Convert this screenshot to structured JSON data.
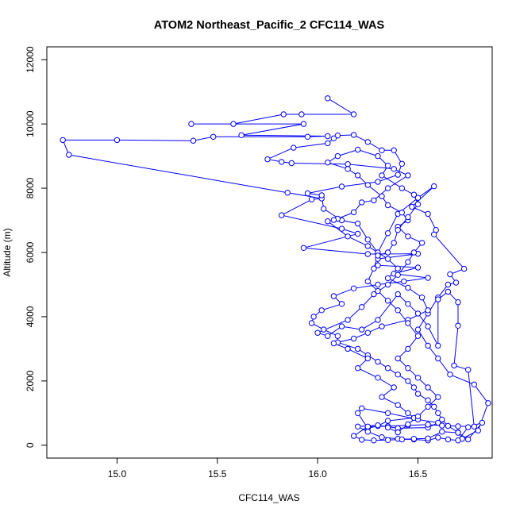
{
  "chart_data": {
    "type": "scatter",
    "title": "ATOM2 Northeast_Pacific_2 CFC114_WAS",
    "xlabel": "CFC114_WAS",
    "ylabel": "Altitude (m)",
    "xlim": [
      14.65,
      16.87
    ],
    "ylim": [
      -400,
      12400
    ],
    "xticks": [
      15.0,
      15.5,
      16.0,
      16.5
    ],
    "xtick_labels": [
      "15.0",
      "15.5",
      "16.0",
      "16.5"
    ],
    "yticks": [
      0,
      2000,
      4000,
      6000,
      8000,
      10000,
      12000
    ],
    "ytick_labels": [
      "0",
      "2000",
      "4000",
      "6000",
      "8000",
      "10000",
      "12000"
    ],
    "grid": false,
    "color": "#0000ff",
    "series": [
      {
        "points": [
          [
            16.05,
            10800
          ],
          [
            16.18,
            10300
          ],
          [
            15.92,
            10300
          ],
          [
            15.83,
            10300
          ],
          [
            15.58,
            10000
          ],
          [
            15.37,
            10000
          ],
          [
            15.93,
            10000
          ],
          [
            15.62,
            9650
          ],
          [
            16.05,
            9620
          ],
          [
            15.95,
            9600
          ],
          [
            15.48,
            9600
          ],
          [
            15.38,
            9480
          ],
          [
            15.0,
            9500
          ],
          [
            14.73,
            9500
          ],
          [
            14.76,
            9040
          ],
          [
            15.85,
            7860
          ],
          [
            16.02,
            7680
          ],
          [
            15.97,
            7650
          ],
          [
            15.82,
            7160
          ],
          [
            16.12,
            6740
          ],
          [
            16.2,
            6580
          ],
          [
            15.93,
            6140
          ],
          [
            16.25,
            5950
          ],
          [
            16.5,
            5960
          ],
          [
            16.3,
            5800
          ],
          [
            16.3,
            5600
          ],
          [
            16.5,
            5530
          ],
          [
            16.38,
            5340
          ],
          [
            16.55,
            5210
          ],
          [
            16.43,
            5100
          ],
          [
            16.3,
            5000
          ],
          [
            16.18,
            4880
          ],
          [
            16.08,
            4640
          ],
          [
            16.12,
            4400
          ],
          [
            16.02,
            4200
          ],
          [
            15.98,
            4000
          ],
          [
            15.97,
            3800
          ],
          [
            16.03,
            3600
          ],
          [
            16.1,
            3400
          ],
          [
            16.1,
            3200
          ],
          [
            16.2,
            3000
          ],
          [
            16.25,
            2800
          ],
          [
            16.3,
            2600
          ],
          [
            16.35,
            2400
          ],
          [
            16.4,
            2200
          ],
          [
            16.45,
            2000
          ],
          [
            16.48,
            1800
          ],
          [
            16.5,
            1600
          ],
          [
            16.55,
            1400
          ],
          [
            16.58,
            1200
          ],
          [
            16.6,
            1000
          ],
          [
            16.62,
            800
          ],
          [
            16.65,
            600
          ],
          [
            16.7,
            400
          ],
          [
            16.72,
            200
          ],
          [
            16.8,
            460
          ],
          [
            16.85,
            1310
          ],
          [
            16.78,
            1890
          ],
          [
            16.66,
            2200
          ],
          [
            16.6,
            2700
          ],
          [
            16.55,
            3100
          ],
          [
            16.5,
            3600
          ],
          [
            16.55,
            4100
          ],
          [
            16.6,
            4600
          ],
          [
            16.65,
            5000
          ],
          [
            16.69,
            5060
          ],
          [
            16.66,
            5320
          ],
          [
            16.73,
            5490
          ],
          [
            16.58,
            6560
          ],
          [
            16.59,
            6700
          ],
          [
            16.55,
            7200
          ],
          [
            16.47,
            7420
          ],
          [
            16.58,
            8060
          ],
          [
            16.5,
            7700
          ],
          [
            16.4,
            7200
          ],
          [
            16.35,
            6600
          ],
          [
            16.3,
            6000
          ],
          [
            16.25,
            6400
          ],
          [
            16.2,
            6900
          ],
          [
            16.12,
            7000
          ],
          [
            16.03,
            7360
          ],
          [
            16.02,
            7780
          ],
          [
            15.95,
            7840
          ],
          [
            16.12,
            8050
          ],
          [
            16.3,
            8200
          ],
          [
            16.4,
            8420
          ],
          [
            16.42,
            8760
          ],
          [
            16.38,
            9180
          ],
          [
            16.32,
            9180
          ],
          [
            16.25,
            9440
          ],
          [
            16.18,
            9660
          ],
          [
            16.1,
            9640
          ],
          [
            16.08,
            9550
          ],
          [
            16.05,
            9400
          ],
          [
            15.88,
            9260
          ],
          [
            15.75,
            8900
          ],
          [
            15.82,
            8820
          ],
          [
            15.87,
            8780
          ],
          [
            16.15,
            8750
          ],
          [
            16.38,
            8600
          ],
          [
            16.45,
            8400
          ],
          [
            16.35,
            8000
          ],
          [
            16.28,
            7620
          ],
          [
            16.22,
            7560
          ],
          [
            16.18,
            7250
          ],
          [
            16.1,
            7050
          ],
          [
            16.08,
            7010
          ],
          [
            16.05,
            6970
          ],
          [
            16.15,
            6500
          ],
          [
            16.25,
            6200
          ],
          [
            16.35,
            5800
          ],
          [
            16.4,
            5500
          ],
          [
            16.35,
            5200
          ],
          [
            16.45,
            4900
          ],
          [
            16.52,
            4600
          ],
          [
            16.55,
            4200
          ],
          [
            16.45,
            3900
          ],
          [
            16.32,
            3700
          ],
          [
            16.25,
            3500
          ],
          [
            16.18,
            3320
          ],
          [
            16.08,
            3170
          ],
          [
            16.15,
            3000
          ],
          [
            16.25,
            2700
          ],
          [
            16.2,
            2400
          ],
          [
            16.3,
            2100
          ],
          [
            16.38,
            1800
          ],
          [
            16.32,
            1500
          ],
          [
            16.4,
            1250
          ],
          [
            16.45,
            1000
          ],
          [
            16.48,
            850
          ],
          [
            16.35,
            760
          ],
          [
            16.3,
            600
          ],
          [
            16.25,
            530
          ],
          [
            16.2,
            1000
          ],
          [
            16.22,
            1150
          ],
          [
            16.35,
            1000
          ],
          [
            16.5,
            800
          ],
          [
            16.6,
            700
          ],
          [
            16.55,
            550
          ],
          [
            16.4,
            530
          ],
          [
            16.3,
            620
          ],
          [
            16.2,
            580
          ],
          [
            16.25,
            420
          ],
          [
            16.32,
            250
          ],
          [
            16.4,
            200
          ],
          [
            16.48,
            180
          ],
          [
            16.55,
            150
          ],
          [
            16.6,
            240
          ],
          [
            16.65,
            180
          ],
          [
            16.7,
            150
          ],
          [
            16.75,
            560
          ],
          [
            16.82,
            700
          ],
          [
            16.75,
            180
          ],
          [
            16.7,
            390
          ],
          [
            16.62,
            420
          ],
          [
            16.55,
            210
          ],
          [
            16.48,
            200
          ],
          [
            16.42,
            180
          ],
          [
            16.35,
            160
          ],
          [
            16.28,
            150
          ],
          [
            16.22,
            170
          ],
          [
            16.18,
            290
          ],
          [
            16.25,
            580
          ],
          [
            16.35,
            590
          ],
          [
            16.45,
            620
          ],
          [
            16.55,
            640
          ],
          [
            16.62,
            610
          ],
          [
            16.7,
            590
          ],
          [
            16.78,
            580
          ],
          [
            16.75,
            2350
          ],
          [
            16.68,
            2480
          ],
          [
            16.7,
            3720
          ],
          [
            16.7,
            4450
          ],
          [
            16.65,
            4780
          ],
          [
            16.6,
            4540
          ],
          [
            16.6,
            3100
          ],
          [
            16.55,
            3700
          ],
          [
            16.5,
            4100
          ],
          [
            16.45,
            4400
          ],
          [
            16.4,
            4700
          ],
          [
            16.3,
            3900
          ],
          [
            16.22,
            3600
          ],
          [
            16.12,
            3700
          ],
          [
            16.05,
            3400
          ],
          [
            16.0,
            3500
          ],
          [
            16.15,
            3900
          ],
          [
            16.22,
            4300
          ],
          [
            16.28,
            4700
          ],
          [
            16.35,
            5000
          ],
          [
            16.4,
            5300
          ],
          [
            16.45,
            5700
          ],
          [
            16.48,
            6000
          ],
          [
            16.52,
            6300
          ],
          [
            16.45,
            6500
          ],
          [
            16.4,
            6800
          ],
          [
            16.45,
            7000
          ],
          [
            16.42,
            7240
          ],
          [
            16.35,
            7470
          ],
          [
            16.32,
            7750
          ],
          [
            16.25,
            8100
          ],
          [
            16.2,
            8400
          ],
          [
            16.15,
            8600
          ],
          [
            16.05,
            8800
          ],
          [
            16.1,
            9000
          ],
          [
            16.2,
            9200
          ],
          [
            16.3,
            9000
          ],
          [
            16.35,
            8700
          ],
          [
            16.32,
            8400
          ],
          [
            16.42,
            8000
          ],
          [
            16.48,
            7800
          ],
          [
            16.5,
            7500
          ],
          [
            16.45,
            7100
          ],
          [
            16.4,
            6700
          ],
          [
            16.38,
            6300
          ],
          [
            16.35,
            6000
          ],
          [
            16.3,
            5900
          ],
          [
            16.28,
            5500
          ],
          [
            16.25,
            5100
          ],
          [
            16.3,
            4800
          ],
          [
            16.35,
            4500
          ],
          [
            16.4,
            4200
          ],
          [
            16.45,
            3800
          ],
          [
            16.5,
            3400
          ],
          [
            16.45,
            3000
          ],
          [
            16.4,
            2700
          ],
          [
            16.45,
            2400
          ],
          [
            16.5,
            2100
          ],
          [
            16.55,
            1800
          ],
          [
            16.6,
            1500
          ],
          [
            16.55,
            1200
          ],
          [
            16.5,
            900
          ],
          [
            16.45,
            650
          ],
          [
            16.4,
            400
          ],
          [
            16.35,
            550
          ]
        ]
      }
    ]
  }
}
